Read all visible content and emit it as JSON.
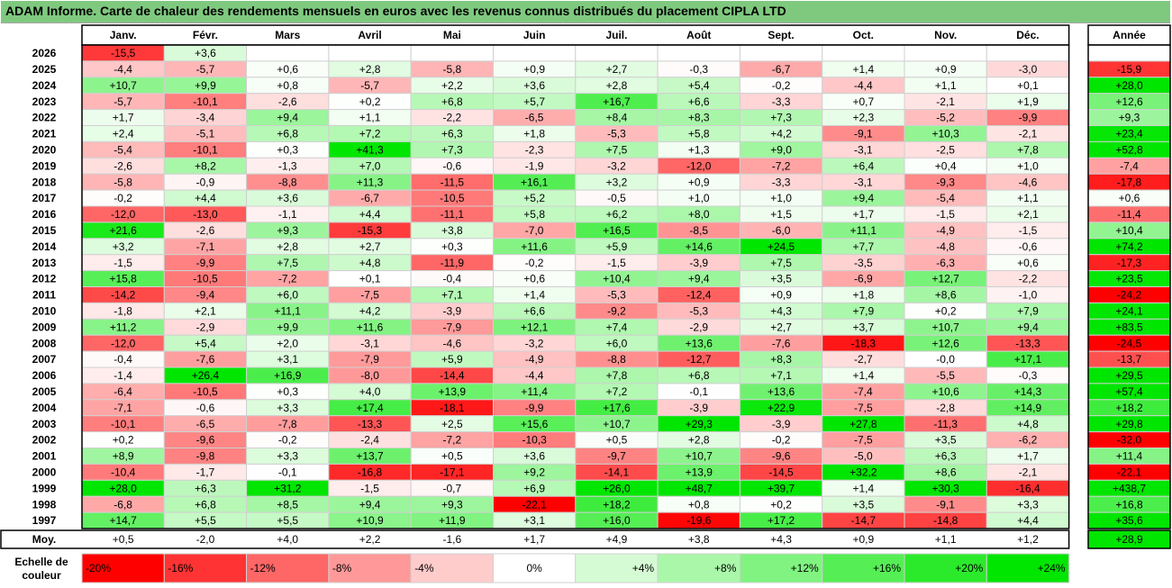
{
  "title": "ADAM Informe. Carte de chaleur des rendements mensuels en euros avec les revenus connus distribués du placement CIPLA LTD",
  "chart_data": {
    "type": "heatmap",
    "months": [
      "Janv.",
      "Févr.",
      "Mars",
      "Avril",
      "Mai",
      "Juin",
      "Juil.",
      "Août",
      "Sept.",
      "Oct.",
      "Nov.",
      "Déc."
    ],
    "year_header": "Année",
    "rows": [
      {
        "label": "2026",
        "values": [
          "-15,5",
          "+3,6",
          "",
          "",
          "",
          "",
          "",
          "",
          "",
          "",
          "",
          ""
        ],
        "annual": ""
      },
      {
        "label": "2025",
        "values": [
          "-4,4",
          "-5,7",
          "+0,6",
          "+2,8",
          "-5,8",
          "+0,9",
          "+2,7",
          "-0,3",
          "-6,7",
          "+1,4",
          "+0,9",
          "-3,0"
        ],
        "annual": "-15,9"
      },
      {
        "label": "2024",
        "values": [
          "+10,7",
          "+9,9",
          "+0,8",
          "-5,7",
          "+2,2",
          "+3,6",
          "+2,8",
          "+5,4",
          "-0,2",
          "-4,4",
          "+1,1",
          "+0,1"
        ],
        "annual": "+28,0"
      },
      {
        "label": "2023",
        "values": [
          "-5,7",
          "-10,1",
          "-2,6",
          "+0,2",
          "+6,8",
          "+5,7",
          "+16,7",
          "+6,6",
          "-3,3",
          "+0,7",
          "-2,1",
          "+1,9"
        ],
        "annual": "+12,6"
      },
      {
        "label": "2022",
        "values": [
          "+1,7",
          "-3,4",
          "+9,4",
          "+1,1",
          "-2,2",
          "-6,5",
          "+8,4",
          "+8,3",
          "+7,3",
          "+2,3",
          "-5,2",
          "-9,9"
        ],
        "annual": "+9,3"
      },
      {
        "label": "2021",
        "values": [
          "+2,4",
          "-5,1",
          "+6,8",
          "+7,2",
          "+6,3",
          "+1,8",
          "-5,3",
          "+5,8",
          "+4,2",
          "-9,1",
          "+10,3",
          "-2,1"
        ],
        "annual": "+23,4"
      },
      {
        "label": "2020",
        "values": [
          "-5,4",
          "-10,1",
          "+0,3",
          "+41,3",
          "+7,3",
          "-2,3",
          "+7,5",
          "+1,3",
          "+9,0",
          "-3,1",
          "-2,5",
          "+7,8"
        ],
        "annual": "+52,8"
      },
      {
        "label": "2019",
        "values": [
          "-2,6",
          "+8,2",
          "-1,3",
          "+7,0",
          "-0,6",
          "-1,9",
          "-3,2",
          "-12,0",
          "-7,2",
          "+6,4",
          "+0,4",
          "+1,0"
        ],
        "annual": "-7,4"
      },
      {
        "label": "2018",
        "values": [
          "-5,8",
          "-0,9",
          "-8,8",
          "+11,3",
          "-11,5",
          "+16,1",
          "+3,2",
          "+0,9",
          "-3,3",
          "-3,1",
          "-9,3",
          "-4,6"
        ],
        "annual": "-17,8"
      },
      {
        "label": "2017",
        "values": [
          "-0,2",
          "+4,4",
          "+3,6",
          "-6,7",
          "-10,5",
          "+5,2",
          "-0,5",
          "+1,0",
          "+1,0",
          "+9,4",
          "-5,4",
          "+1,1"
        ],
        "annual": "+0,6"
      },
      {
        "label": "2016",
        "values": [
          "-12,0",
          "-13,0",
          "-1,1",
          "+4,4",
          "-11,1",
          "+5,8",
          "+6,2",
          "+8,0",
          "+1,5",
          "+1,7",
          "-1,5",
          "+2,1"
        ],
        "annual": "-11,4"
      },
      {
        "label": "2015",
        "values": [
          "+21,6",
          "-2,6",
          "+9,3",
          "-15,3",
          "+3,8",
          "-7,0",
          "+16,5",
          "-8,5",
          "-6,0",
          "+11,1",
          "-4,9",
          "-1,5"
        ],
        "annual": "+10,4"
      },
      {
        "label": "2014",
        "values": [
          "+3,2",
          "-7,1",
          "+2,8",
          "+2,7",
          "+0,3",
          "+11,6",
          "+5,9",
          "+14,6",
          "+24,5",
          "+7,7",
          "-4,8",
          "-0,6"
        ],
        "annual": "+74,2"
      },
      {
        "label": "2013",
        "values": [
          "-1,5",
          "-9,9",
          "+7,5",
          "+4,8",
          "-11,9",
          "-0,2",
          "-1,5",
          "-3,9",
          "+7,5",
          "-3,5",
          "-6,3",
          "+0,6"
        ],
        "annual": "-17,3"
      },
      {
        "label": "2012",
        "values": [
          "+15,8",
          "-10,5",
          "-7,2",
          "+0,1",
          "-0,4",
          "+0,6",
          "+10,4",
          "+9,4",
          "+3,5",
          "-6,9",
          "+12,7",
          "-2,2"
        ],
        "annual": "+23,5"
      },
      {
        "label": "2011",
        "values": [
          "-14,2",
          "-9,4",
          "+6,0",
          "-7,5",
          "+7,1",
          "+1,4",
          "-5,3",
          "-12,4",
          "+0,9",
          "+1,8",
          "+8,6",
          "-1,0"
        ],
        "annual": "-24,2"
      },
      {
        "label": "2010",
        "values": [
          "-1,8",
          "+2,1",
          "+11,1",
          "+4,2",
          "-3,9",
          "+6,6",
          "-9,2",
          "-5,3",
          "+4,3",
          "+7,9",
          "+0,2",
          "+7,9"
        ],
        "annual": "+24,1"
      },
      {
        "label": "2009",
        "values": [
          "+11,2",
          "-2,9",
          "+9,9",
          "+11,6",
          "-7,9",
          "+12,1",
          "+7,4",
          "-2,9",
          "+2,7",
          "+3,7",
          "+10,7",
          "+9,4"
        ],
        "annual": "+83,5"
      },
      {
        "label": "2008",
        "values": [
          "-12,0",
          "+5,4",
          "+2,0",
          "-3,1",
          "-4,6",
          "-3,2",
          "+6,0",
          "+13,6",
          "-7,6",
          "-18,3",
          "+12,6",
          "-13,3"
        ],
        "annual": "-24,5"
      },
      {
        "label": "2007",
        "values": [
          "-0,4",
          "-7,6",
          "+3,1",
          "-7,9",
          "+5,9",
          "-4,9",
          "-8,8",
          "-12,7",
          "+8,3",
          "-2,7",
          "-0,0",
          "+17,1"
        ],
        "annual": "-13,7"
      },
      {
        "label": "2006",
        "values": [
          "-1,4",
          "+26,4",
          "+16,9",
          "-8,0",
          "-14,4",
          "-4,4",
          "+7,8",
          "+6,8",
          "+7,1",
          "+1,4",
          "-5,5",
          "-0,3"
        ],
        "annual": "+29,5"
      },
      {
        "label": "2005",
        "values": [
          "-6,4",
          "-10,5",
          "+0,3",
          "+4,0",
          "+13,9",
          "+11,4",
          "+7,2",
          "-0,1",
          "+13,6",
          "-7,4",
          "+10,6",
          "+14,3"
        ],
        "annual": "+57,4"
      },
      {
        "label": "2004",
        "values": [
          "-7,1",
          "-0,6",
          "+3,3",
          "+17,4",
          "-18,1",
          "-9,9",
          "+17,6",
          "-3,9",
          "+22,9",
          "-7,5",
          "-2,8",
          "+14,9"
        ],
        "annual": "+18,2"
      },
      {
        "label": "2003",
        "values": [
          "-10,1",
          "-6,5",
          "-7,8",
          "-13,3",
          "+2,5",
          "+15,6",
          "+10,7",
          "+29,3",
          "-3,9",
          "+27,8",
          "-11,3",
          "+4,8"
        ],
        "annual": "+29,8"
      },
      {
        "label": "2002",
        "values": [
          "+0,2",
          "-9,6",
          "-0,2",
          "-2,4",
          "-7,2",
          "-10,3",
          "+0,5",
          "+2,8",
          "-0,2",
          "-7,5",
          "+3,5",
          "-6,2"
        ],
        "annual": "-32,0"
      },
      {
        "label": "2001",
        "values": [
          "+8,9",
          "-9,8",
          "+3,3",
          "+13,7",
          "+0,5",
          "+3,6",
          "-9,7",
          "+10,7",
          "-9,6",
          "-5,0",
          "+6,3",
          "+1,7"
        ],
        "annual": "+11,4"
      },
      {
        "label": "2000",
        "values": [
          "-10,4",
          "-1,7",
          "-0,1",
          "-16,8",
          "-17,1",
          "+9,2",
          "-14,1",
          "+13,9",
          "-14,5",
          "+32,2",
          "+8,6",
          "-2,1"
        ],
        "annual": "-22,1"
      },
      {
        "label": "1999",
        "values": [
          "+28,0",
          "+6,3",
          "+31,2",
          "-1,5",
          "-0,7",
          "+6,9",
          "+26,0",
          "+48,7",
          "+39,7",
          "+1,4",
          "+30,3",
          "-16,4"
        ],
        "annual": "+438,7"
      },
      {
        "label": "1998",
        "values": [
          "-6,8",
          "+6,8",
          "+8,5",
          "+9,4",
          "+9,3",
          "-22,1",
          "+18,2",
          "+0,8",
          "+0,2",
          "+3,5",
          "-9,1",
          "+3,3"
        ],
        "annual": "+16,8"
      },
      {
        "label": "1997",
        "values": [
          "+14,7",
          "+5,5",
          "+5,5",
          "+10,9",
          "+11,9",
          "+3,1",
          "+16,0",
          "-19,6",
          "+17,2",
          "-14,7",
          "-14,8",
          "+4,4"
        ],
        "annual": "+35,6"
      }
    ],
    "average": {
      "label": "Moy.",
      "values": [
        "+0,5",
        "-2,0",
        "+4,0",
        "+2,2",
        "-1,6",
        "+1,7",
        "+4,9",
        "+3,8",
        "+4,3",
        "+0,9",
        "+1,1",
        "+1,2"
      ],
      "annual": "+28,9"
    },
    "scale": {
      "label_line1": "Echelle de",
      "label_line2": "couleur",
      "steps": [
        "-20%",
        "-16%",
        "-12%",
        "-8%",
        "-4%",
        "0%",
        "+4%",
        "+8%",
        "+12%",
        "+16%",
        "+20%",
        "+24%"
      ]
    },
    "colors": {
      "negative_max": "#ff0000",
      "neutral": "#ffffff",
      "positive_max": "#00e600",
      "title_bar": "#7fc97f"
    }
  }
}
